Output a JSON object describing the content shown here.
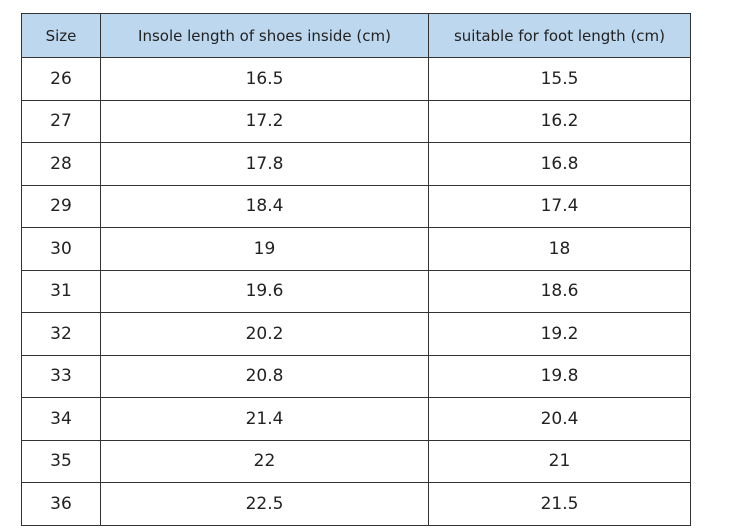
{
  "table": {
    "headers": [
      "Size",
      "Insole length of shoes inside (cm)",
      "suitable for foot length (cm)"
    ],
    "rows": [
      [
        "26",
        "16.5",
        "15.5"
      ],
      [
        "27",
        "17.2",
        "16.2"
      ],
      [
        "28",
        "17.8",
        "16.8"
      ],
      [
        "29",
        "18.4",
        "17.4"
      ],
      [
        "30",
        "19",
        "18"
      ],
      [
        "31",
        "19.6",
        "18.6"
      ],
      [
        "32",
        "20.2",
        "19.2"
      ],
      [
        "33",
        "20.8",
        "19.8"
      ],
      [
        "34",
        "21.4",
        "20.4"
      ],
      [
        "35",
        "22",
        "21"
      ],
      [
        "36",
        "22.5",
        "21.5"
      ]
    ]
  },
  "colors": {
    "header_bg": "#bdd7ee",
    "border": "#333333"
  }
}
